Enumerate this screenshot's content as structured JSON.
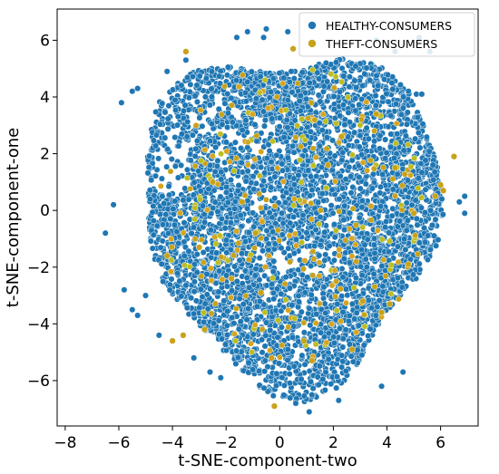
{
  "chart_data": {
    "type": "scatter",
    "title": "",
    "xlabel": "t-SNE-component-two",
    "ylabel": "t-SNE-component-one",
    "xlim": [
      -8.3,
      7.4
    ],
    "ylim": [
      -7.6,
      7.1
    ],
    "xticks": [
      "−8",
      "−6",
      "−4",
      "−2",
      "0",
      "2",
      "4",
      "6"
    ],
    "xtick_values": [
      -8,
      -6,
      -4,
      -2,
      0,
      2,
      4,
      6
    ],
    "yticks": [
      "−6",
      "−4",
      "−2",
      "0",
      "2",
      "4",
      "6"
    ],
    "ytick_values": [
      -6,
      -4,
      -2,
      0,
      2,
      4,
      6
    ],
    "grid": false,
    "legend_position": "top-right",
    "series": [
      {
        "name": "HEALTHY-CONSUMERS",
        "color": "#1f77b4",
        "description": "dense point cloud roughly circular, centred near (0.5, 0), radius about 5.5",
        "points": [
          [
            -6.2,
            0.2
          ],
          [
            -5.8,
            -2.8
          ],
          [
            -5.5,
            -3.5
          ],
          [
            -5.9,
            3.8
          ],
          [
            -5.5,
            4.2
          ],
          [
            -5.3,
            4.3
          ],
          [
            -4.5,
            -4.4
          ],
          [
            -3.2,
            -5.2
          ],
          [
            -2.6,
            -5.7
          ],
          [
            -1.6,
            6.1
          ],
          [
            -1.2,
            6.3
          ],
          [
            -0.5,
            6.4
          ],
          [
            0.3,
            6.3
          ],
          [
            -0.6,
            6.1
          ],
          [
            0.6,
            -6.8
          ],
          [
            1.1,
            -7.1
          ],
          [
            2.2,
            -6.7
          ],
          [
            4.3,
            5.6
          ],
          [
            4.8,
            4.2
          ],
          [
            5.1,
            4.1
          ],
          [
            5.3,
            4.1
          ],
          [
            6.9,
            0.5
          ],
          [
            6.9,
            -0.1
          ],
          [
            5.2,
            6.1
          ],
          [
            5.6,
            5.6
          ],
          [
            -6.5,
            -0.8
          ],
          [
            -5.3,
            -3.7
          ],
          [
            -5.0,
            -3.0
          ],
          [
            -4.2,
            4.9
          ],
          [
            3.6,
            6.0
          ],
          [
            4.6,
            -5.7
          ],
          [
            3.8,
            -6.2
          ],
          [
            -2.2,
            -5.9
          ],
          [
            -3.5,
            5.3
          ],
          [
            6.7,
            0.3
          ]
        ]
      },
      {
        "name": "THEFT-CONSUMERS",
        "color": "#c8a21a",
        "description": "sparse points scattered through the same region",
        "points": [
          [
            -0.2,
            -6.9
          ],
          [
            6.5,
            1.9
          ],
          [
            5.0,
            -0.1
          ],
          [
            5.8,
            0.5
          ],
          [
            6.1,
            0.7
          ],
          [
            4.3,
            1.5
          ],
          [
            -4.0,
            -4.6
          ],
          [
            -3.6,
            -4.4
          ],
          [
            -2.8,
            -4.2
          ],
          [
            -1.4,
            0.3
          ],
          [
            -0.9,
            -0.8
          ],
          [
            1.8,
            1.6
          ],
          [
            3.1,
            -3.2
          ],
          [
            3.8,
            -3.6
          ],
          [
            1.2,
            -5.3
          ],
          [
            -0.3,
            -5.2
          ],
          [
            -1.8,
            -2.4
          ],
          [
            -3.0,
            -1.3
          ],
          [
            2.7,
            -4.9
          ],
          [
            4.8,
            -1.9
          ],
          [
            6.0,
            0.9
          ],
          [
            -2.5,
            1.0
          ],
          [
            0.5,
            5.7
          ],
          [
            -3.5,
            5.6
          ],
          [
            4.1,
            -3.3
          ],
          [
            0.9,
            -4.6
          ],
          [
            -0.7,
            -2.9
          ],
          [
            2.3,
            2.6
          ],
          [
            3.6,
            3.4
          ],
          [
            -4.2,
            -1.6
          ]
        ]
      }
    ]
  },
  "legend": {
    "entries": [
      {
        "label": "HEALTHY-CONSUMERS",
        "color": "#1f77b4"
      },
      {
        "label": "THEFT-CONSUMERS",
        "color": "#c8a21a"
      }
    ]
  }
}
